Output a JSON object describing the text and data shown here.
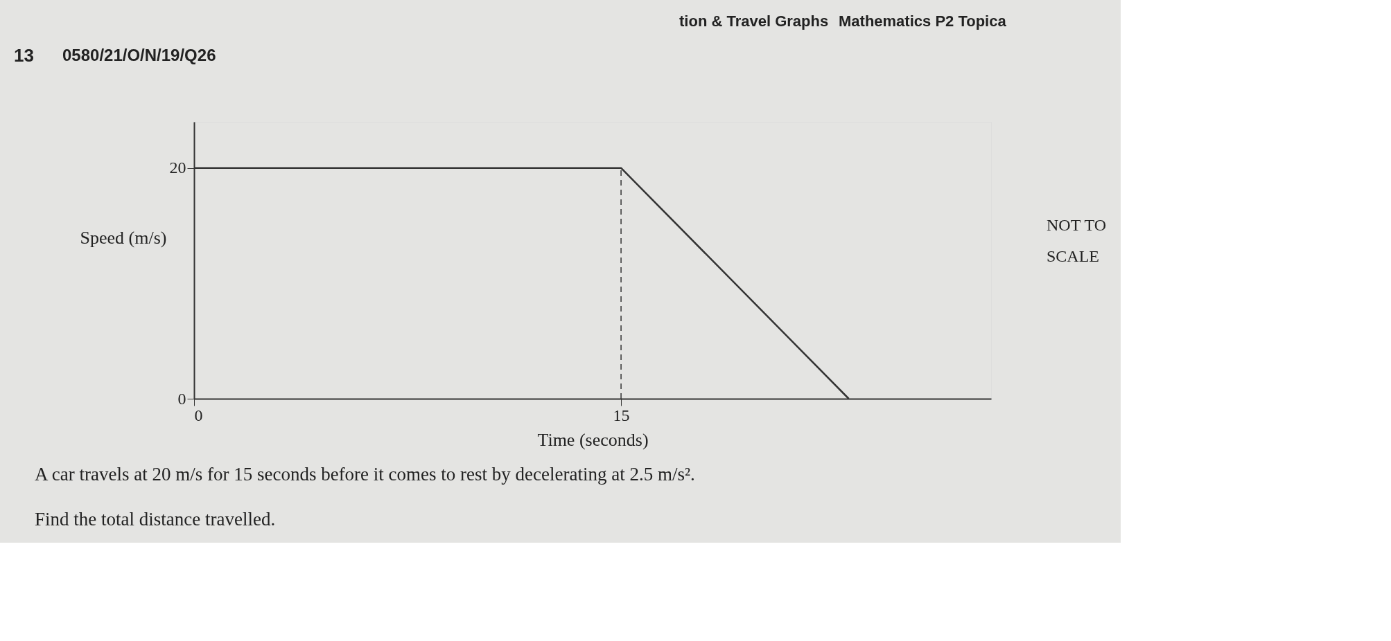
{
  "chart_data": {
    "type": "line",
    "xlabel": "Time (seconds)",
    "ylabel": "Speed (m/s)",
    "x": [
      0,
      15,
      23
    ],
    "series": [
      {
        "color": "#333333",
        "values": [
          20,
          20,
          0
        ]
      }
    ],
    "xlim": [
      0,
      28
    ],
    "ylim": [
      0,
      24
    ],
    "xticks": [
      0,
      15
    ],
    "yticks": [
      0,
      20
    ],
    "ref_lines": [
      {
        "axis": "x",
        "value": 15,
        "line_style": "dashed",
        "color": "#333333"
      }
    ],
    "grid": false,
    "marker": "none",
    "line_style": "solid",
    "annotations": [
      "tion & Travel Graphs",
      "Mathematics P2 Topica",
      "13",
      "0580/21/O/N/19/Q26",
      "NOT TO",
      "SCALE",
      "A car travels at 20 m/s for 15 seconds before it comes to rest by decelerating at 2.5 m/s².",
      "Find the total distance travelled."
    ]
  }
}
